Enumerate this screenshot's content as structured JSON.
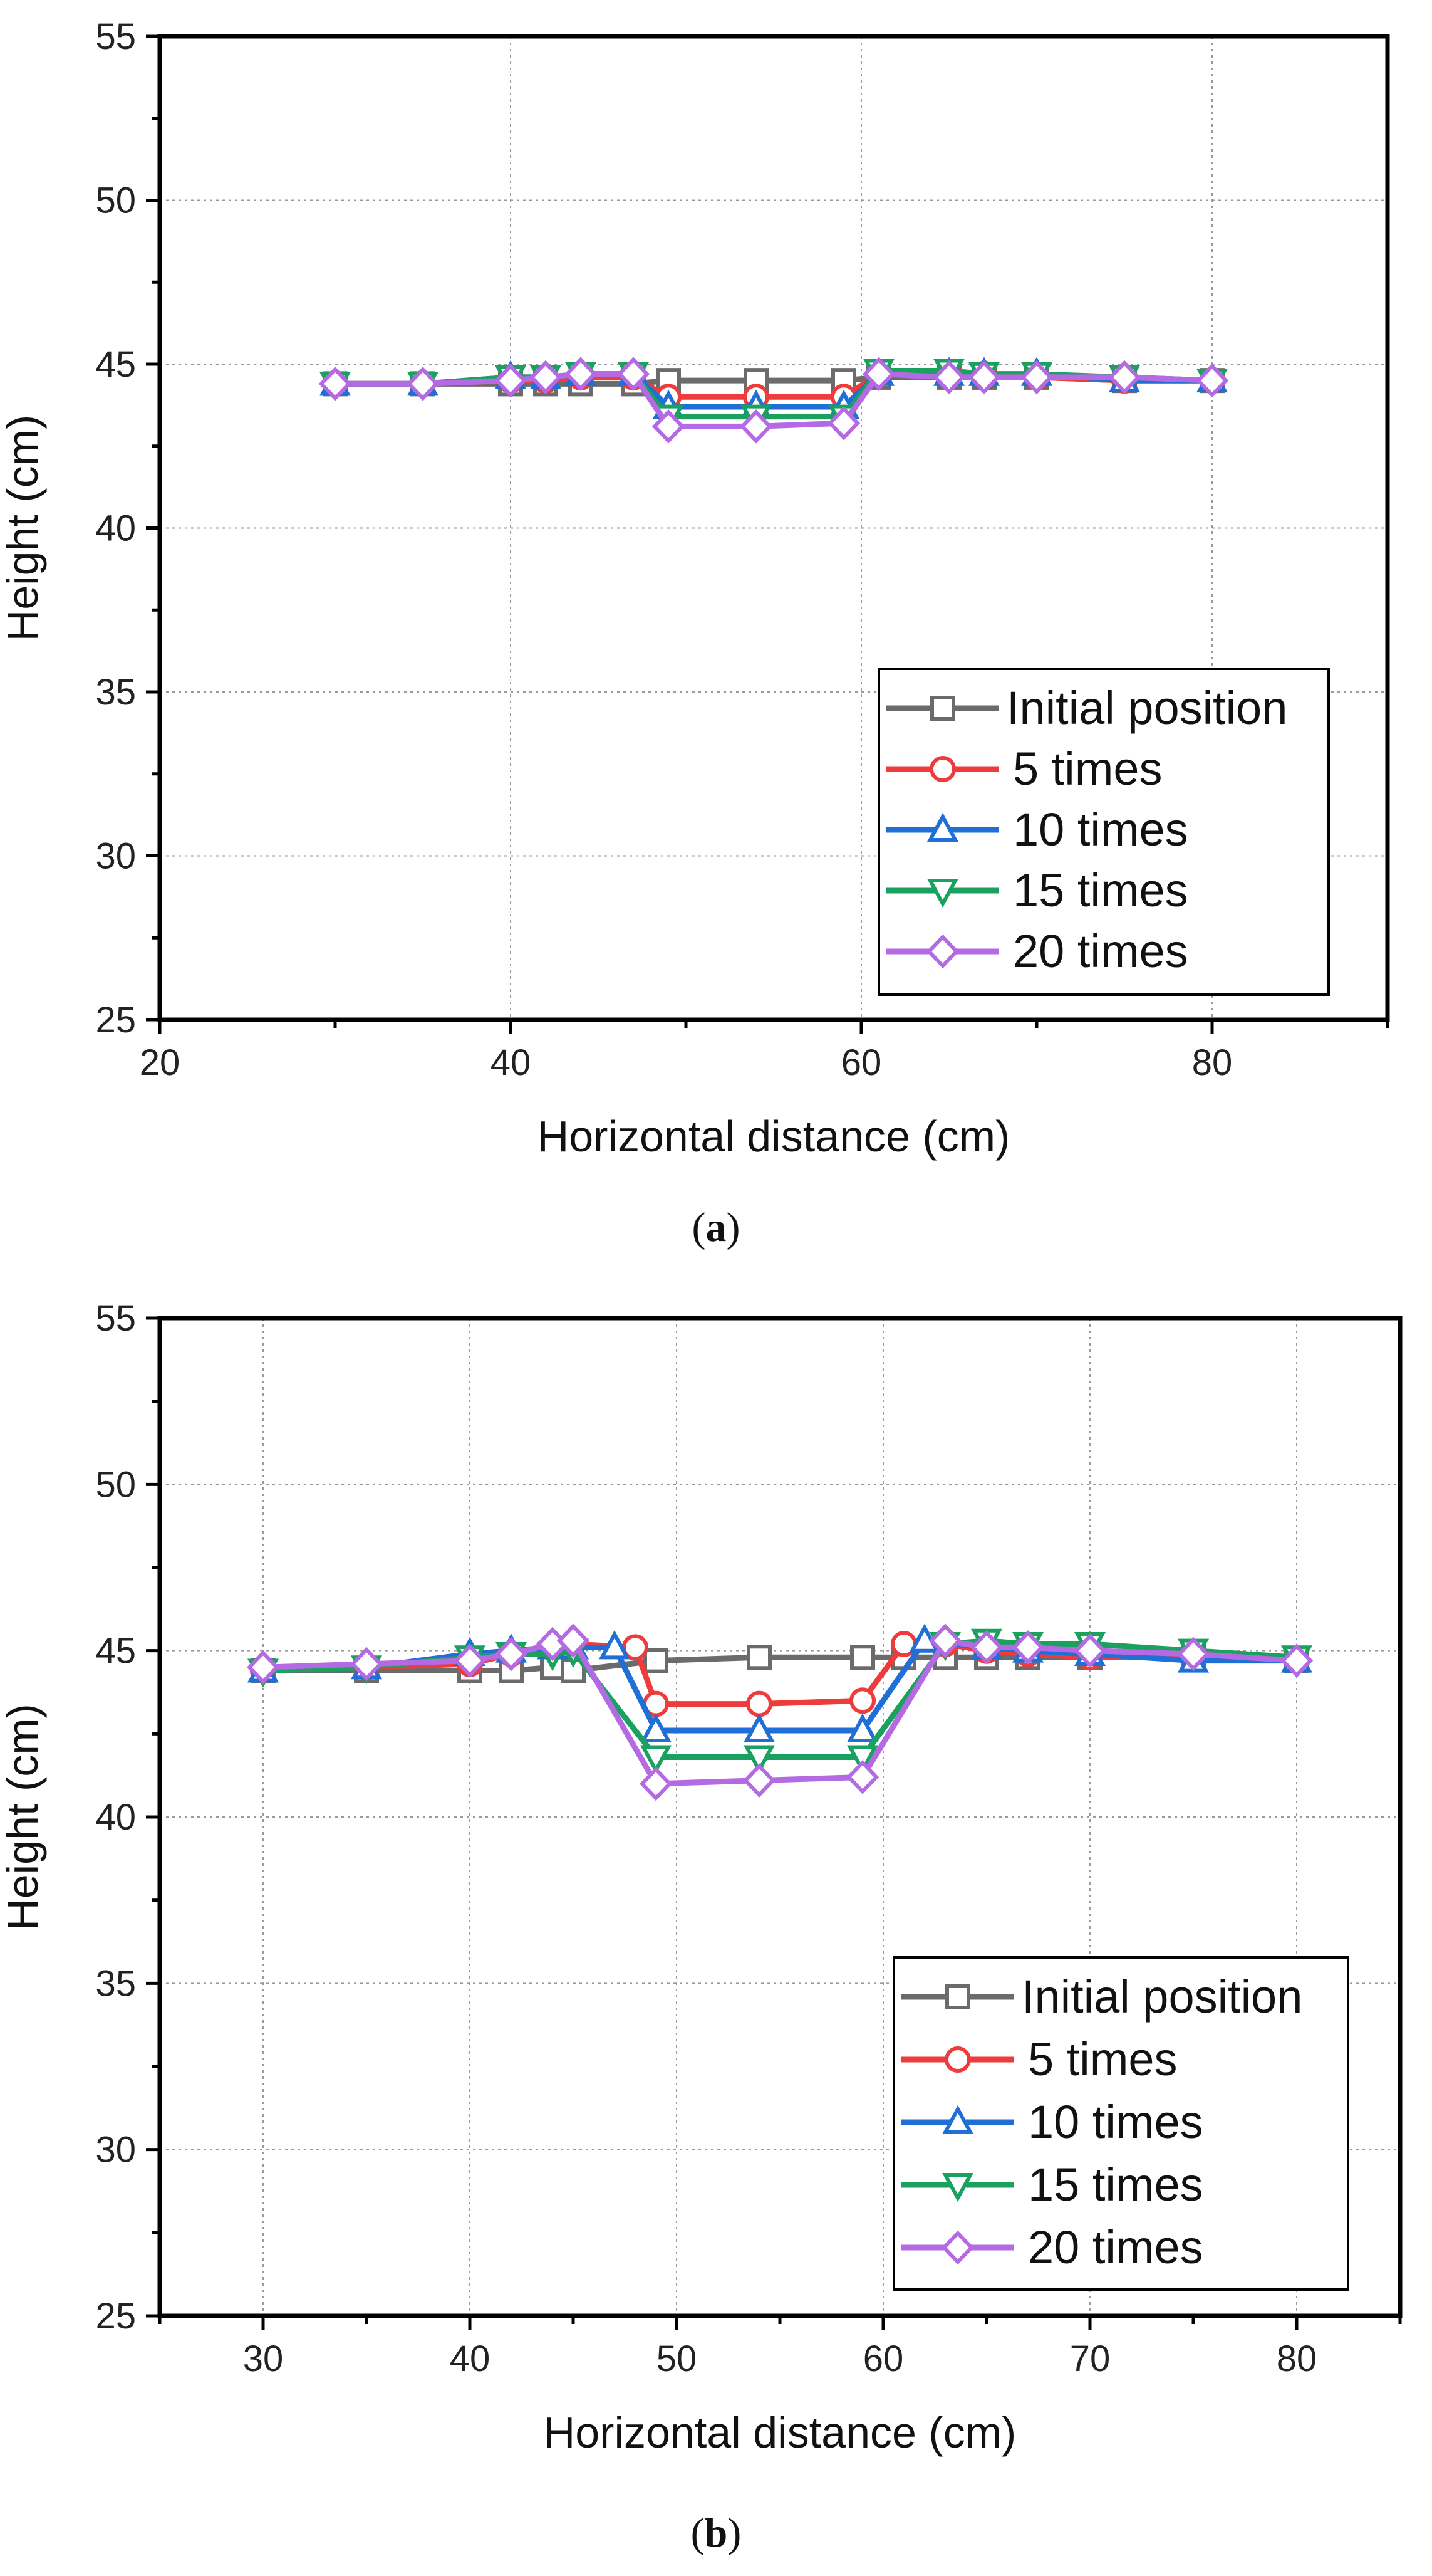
{
  "series_colors": [
    "#6b6b6b",
    "#ee3b3b",
    "#1f6fd6",
    "#1aa15f",
    "#b36ae2"
  ],
  "chart_data": [
    {
      "type": "line",
      "caption_open": "(",
      "caption_letter": "a",
      "caption_close": ")",
      "xlabel": "Horizontal distance (cm)",
      "ylabel": "Height (cm)",
      "xlim": [
        20,
        90
      ],
      "ylim": [
        25,
        55
      ],
      "xticks": [
        20,
        40,
        60,
        80
      ],
      "yticks": [
        25,
        30,
        35,
        40,
        45,
        50,
        55
      ],
      "grid": true,
      "legend_position": "bottom-right",
      "series": [
        {
          "name": "Initial position",
          "marker": "square",
          "x": [
            30,
            35,
            40,
            42,
            44,
            47,
            49,
            54,
            59,
            61,
            65,
            67,
            70,
            75,
            80
          ],
          "y": [
            44.4,
            44.4,
            44.4,
            44.4,
            44.4,
            44.4,
            44.5,
            44.5,
            44.5,
            44.6,
            44.6,
            44.6,
            44.6,
            44.5,
            44.5
          ]
        },
        {
          "name": "5 times",
          "marker": "circle",
          "x": [
            30,
            35,
            40,
            42,
            44,
            47,
            49,
            54,
            59,
            61,
            65,
            67,
            70,
            75,
            80
          ],
          "y": [
            44.4,
            44.4,
            44.5,
            44.5,
            44.6,
            44.6,
            44.0,
            44.0,
            44.0,
            44.7,
            44.7,
            44.7,
            44.6,
            44.5,
            44.5
          ]
        },
        {
          "name": "10 times",
          "marker": "triangle-up",
          "x": [
            30,
            35,
            40,
            42,
            44,
            47,
            49,
            54,
            59,
            61,
            65,
            67,
            70,
            75,
            80
          ],
          "y": [
            44.4,
            44.4,
            44.6,
            44.6,
            44.7,
            44.7,
            43.7,
            43.7,
            43.7,
            44.7,
            44.7,
            44.7,
            44.7,
            44.5,
            44.5
          ]
        },
        {
          "name": "15 times",
          "marker": "triangle-down",
          "x": [
            30,
            35,
            40,
            42,
            44,
            47,
            49,
            54,
            59,
            61,
            65,
            67,
            70,
            75,
            80
          ],
          "y": [
            44.4,
            44.4,
            44.6,
            44.6,
            44.7,
            44.7,
            43.4,
            43.4,
            43.4,
            44.8,
            44.8,
            44.7,
            44.7,
            44.6,
            44.5
          ]
        },
        {
          "name": "20 times",
          "marker": "diamond",
          "x": [
            30,
            35,
            40,
            42,
            44,
            47,
            49,
            54,
            59,
            61,
            65,
            67,
            70,
            75,
            80
          ],
          "y": [
            44.4,
            44.4,
            44.5,
            44.6,
            44.7,
            44.7,
            43.1,
            43.1,
            43.2,
            44.7,
            44.6,
            44.6,
            44.6,
            44.6,
            44.5
          ]
        }
      ]
    },
    {
      "type": "line",
      "caption_open": "(",
      "caption_letter": "b",
      "caption_close": ")",
      "xlabel": "Horizontal distance (cm)",
      "ylabel": "Height (cm)",
      "xlim": [
        25,
        85
      ],
      "ylim": [
        25,
        55
      ],
      "xticks": [
        30,
        40,
        50,
        60,
        70,
        80
      ],
      "yticks": [
        25,
        30,
        35,
        40,
        45,
        50,
        55
      ],
      "grid": true,
      "legend_position": "bottom-right",
      "series": [
        {
          "name": "Initial position",
          "marker": "square",
          "x": [
            30,
            35,
            40,
            42,
            44,
            45,
            49,
            54,
            59,
            61,
            63,
            65,
            67,
            70,
            75,
            80
          ],
          "y": [
            44.4,
            44.4,
            44.4,
            44.4,
            44.5,
            44.4,
            44.7,
            44.8,
            44.8,
            44.8,
            44.8,
            44.8,
            44.8,
            44.8,
            44.8,
            44.7
          ]
        },
        {
          "name": "5 times",
          "marker": "circle",
          "x": [
            30,
            35,
            40,
            42,
            44,
            45,
            48,
            49,
            54,
            59,
            61,
            63,
            65,
            67,
            70,
            75,
            80
          ],
          "y": [
            44.4,
            44.5,
            44.6,
            44.9,
            45.1,
            45.2,
            45.1,
            43.4,
            43.4,
            43.5,
            45.2,
            45.2,
            45.0,
            44.9,
            44.8,
            44.8,
            44.7
          ]
        },
        {
          "name": "10 times",
          "marker": "triangle-up",
          "x": [
            30,
            35,
            40,
            42,
            44,
            45,
            47,
            49,
            54,
            59,
            62,
            65,
            67,
            70,
            75,
            80
          ],
          "y": [
            44.4,
            44.5,
            44.9,
            45.0,
            45.1,
            45.1,
            45.1,
            42.6,
            42.6,
            42.6,
            45.3,
            45.1,
            45.0,
            44.9,
            44.7,
            44.7
          ]
        },
        {
          "name": "15 times",
          "marker": "triangle-down",
          "x": [
            30,
            35,
            40,
            42,
            44,
            45,
            49,
            54,
            59,
            63,
            65,
            67,
            70,
            75,
            80
          ],
          "y": [
            44.4,
            44.5,
            44.8,
            44.9,
            44.9,
            45.0,
            41.8,
            41.8,
            41.8,
            45.2,
            45.3,
            45.2,
            45.2,
            45.0,
            44.8
          ]
        },
        {
          "name": "20 times",
          "marker": "diamond",
          "x": [
            30,
            35,
            40,
            42,
            44,
            45,
            49,
            54,
            59,
            63,
            65,
            67,
            70,
            75,
            80
          ],
          "y": [
            44.5,
            44.6,
            44.7,
            44.9,
            45.2,
            45.3,
            41.0,
            41.1,
            41.2,
            45.3,
            45.1,
            45.1,
            45.0,
            44.9,
            44.7
          ]
        }
      ]
    }
  ]
}
